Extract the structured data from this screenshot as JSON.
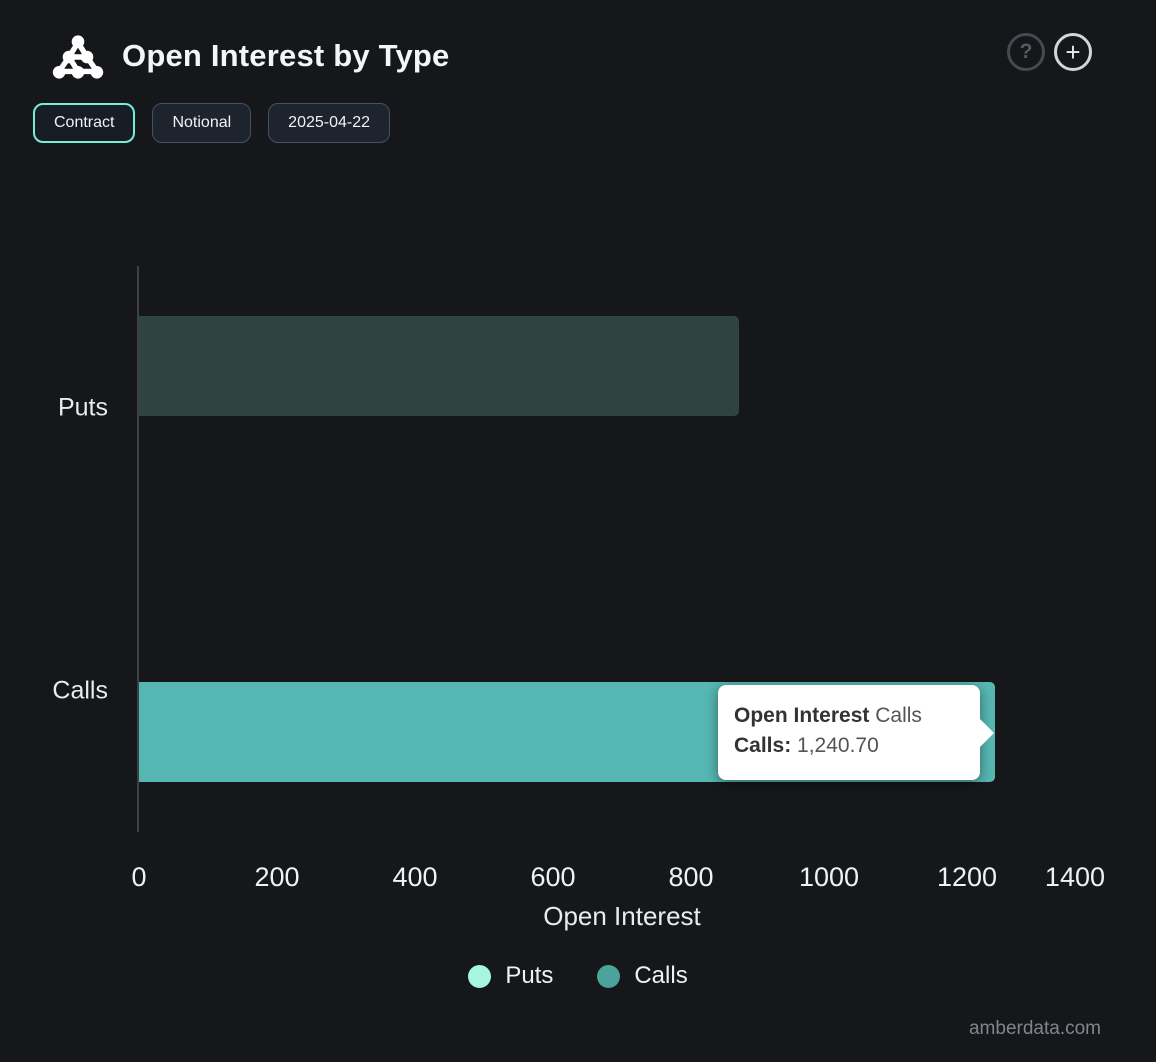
{
  "header": {
    "title": "Open Interest by Type",
    "help_glyph": "?",
    "add_glyph": "+"
  },
  "controls": {
    "contract_label": "Contract",
    "notional_label": "Notional",
    "date_label": "2025-04-22"
  },
  "colors": {
    "background": "#15171a",
    "accent_mint_border": "#76ecd9",
    "calls_bar": "#56b7b2",
    "puts_bar_dimmed": "#2f4340",
    "puts_legend": "#a7f5e1",
    "calls_legend": "#4ca39c",
    "axis_line": "#3d4147",
    "tooltip_bg": "#ffffff"
  },
  "chart_data": {
    "type": "bar",
    "orientation": "horizontal",
    "categories": [
      "Puts",
      "Calls"
    ],
    "series": [
      {
        "name": "Puts",
        "values": [
          870,
          null
        ],
        "bar_color": "#2f4340",
        "legend_color": "#a7f5e1"
      },
      {
        "name": "Calls",
        "values": [
          null,
          1240.7
        ],
        "bar_color": "#56b7b2",
        "legend_color": "#4ca39c"
      }
    ],
    "xlabel": "Open Interest",
    "xticks": [
      0,
      200,
      400,
      600,
      800,
      1000,
      1200,
      1400
    ],
    "xlim": [
      0,
      1400
    ],
    "grid": false,
    "legend_position": "bottom"
  },
  "tooltip": {
    "title_bold": "Open Interest",
    "title_rest": "Calls",
    "row_label": "Calls:",
    "row_value": "1,240.70"
  },
  "footer": {
    "watermark": "amberdata.com"
  }
}
